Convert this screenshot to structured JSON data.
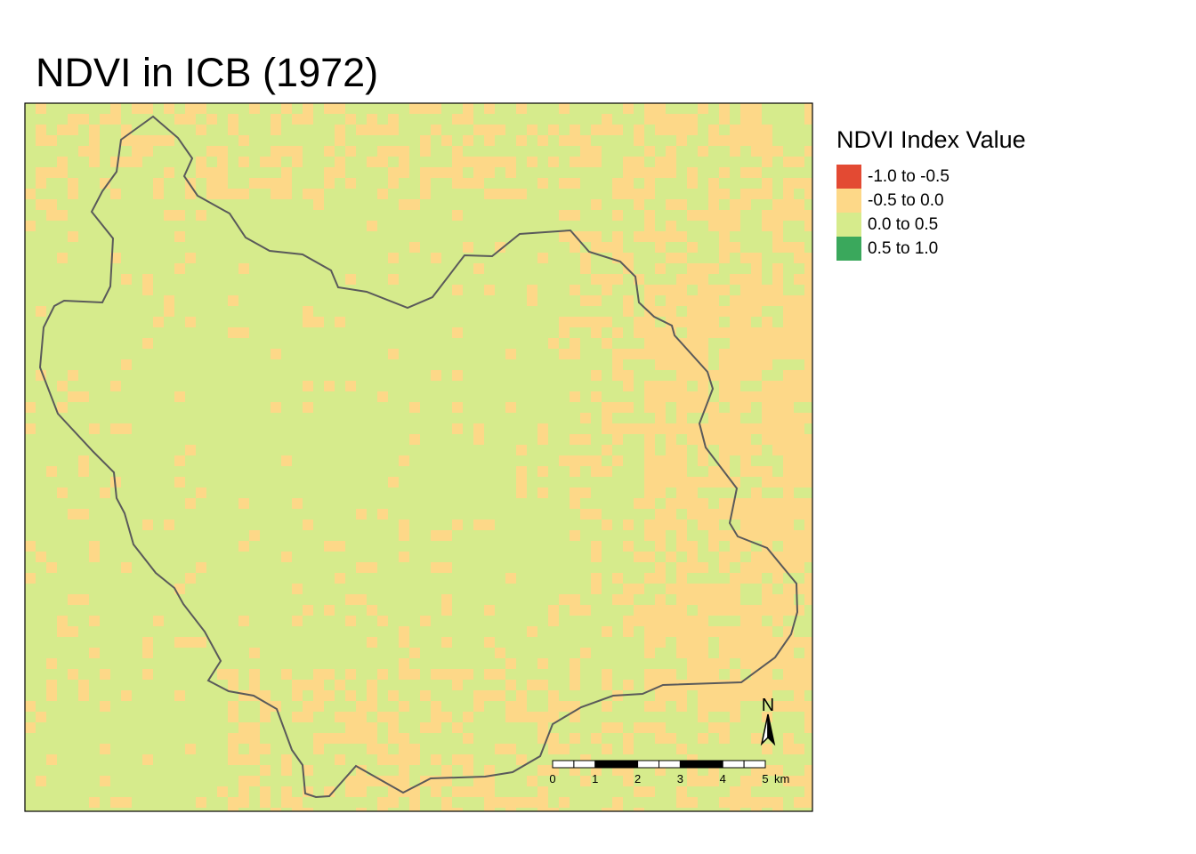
{
  "title": "NDVI in ICB (1972)",
  "legend": {
    "title": "NDVI Index Value",
    "items": [
      {
        "label": "-1.0 to -0.5",
        "color": "#e34a33"
      },
      {
        "label": "-0.5 to 0.0",
        "color": "#fdd888"
      },
      {
        "label": "0.0 to 0.5",
        "color": "#d6eb8c"
      },
      {
        "label": "0.5 to 1.0",
        "color": "#3aa85c"
      }
    ]
  },
  "north_arrow": {
    "label": "N"
  },
  "scale_bar": {
    "ticks": [
      "0",
      "1",
      "2",
      "3",
      "4",
      "5"
    ],
    "unit": "km"
  },
  "colors": {
    "background_class": "#d6eb8c",
    "low_class": "#fdd888",
    "boundary": "#5a5a5a",
    "frame": "#000000"
  }
}
